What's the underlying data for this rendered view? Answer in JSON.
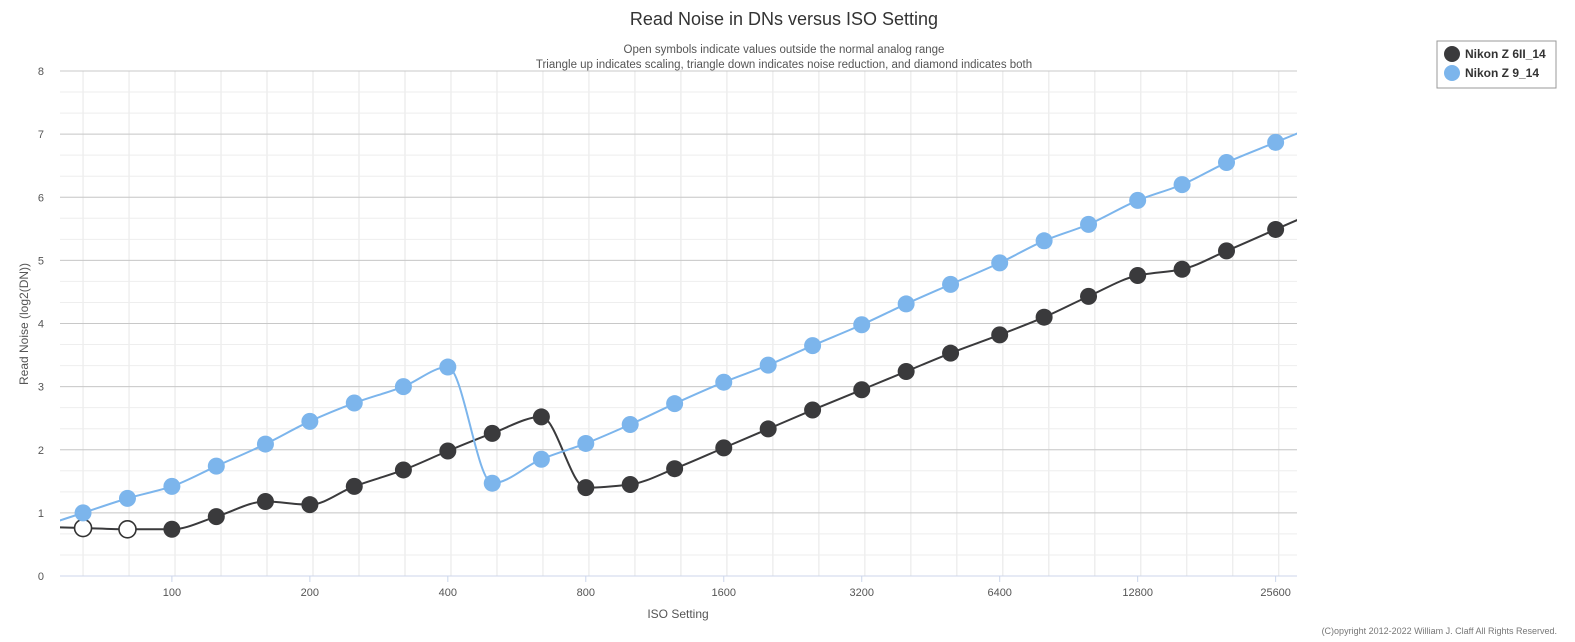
{
  "chart_data": {
    "type": "line",
    "title": "Read Noise in DNs versus ISO Setting",
    "subtitle_lines": [
      "Open symbols indicate values outside the normal analog range",
      "Triangle up indicates scaling, triangle down indicates noise reduction, and diamond indicates both"
    ],
    "xlabel": "ISO Setting",
    "ylabel": "Read Noise (log2(DN))",
    "x_scale": "log2",
    "x_ticks": [
      100,
      200,
      400,
      800,
      1600,
      3200,
      6400,
      12800,
      25600
    ],
    "x_tick_labels": [
      "100",
      "200",
      "400",
      "800",
      "1600",
      "3200",
      "6400",
      "12800",
      "25600"
    ],
    "xlim": [
      57,
      28500
    ],
    "ylim": [
      0,
      8
    ],
    "y_ticks": [
      0,
      1,
      2,
      3,
      4,
      5,
      6,
      7,
      8
    ],
    "y_tick_labels": [
      "0",
      "1",
      "2",
      "3",
      "4",
      "5",
      "6",
      "7",
      "8"
    ],
    "grid": true,
    "legend_position": "top-right",
    "series": [
      {
        "name": "Nikon Z 6II_14",
        "color": "#3a3a3c",
        "x": [
          64,
          80,
          100,
          125,
          160,
          200,
          250,
          320,
          400,
          500,
          640,
          800,
          1000,
          1250,
          1600,
          2000,
          2500,
          3200,
          4000,
          5000,
          6400,
          8000,
          10000,
          12800,
          16000,
          20000,
          25600
        ],
        "y": [
          0.76,
          0.74,
          0.74,
          0.94,
          1.18,
          1.13,
          1.42,
          1.68,
          1.98,
          2.26,
          2.52,
          1.4,
          1.45,
          1.7,
          2.03,
          2.33,
          2.63,
          2.95,
          3.24,
          3.53,
          3.82,
          4.1,
          4.43,
          4.76,
          4.86,
          5.15,
          5.49
        ],
        "open": [
          true,
          true,
          false,
          false,
          false,
          false,
          false,
          false,
          false,
          false,
          false,
          false,
          false,
          false,
          false,
          false,
          false,
          false,
          false,
          false,
          false,
          false,
          false,
          false,
          false,
          false,
          false
        ]
      },
      {
        "name": "Nikon Z 9_14",
        "color": "#7cb5ec",
        "x": [
          64,
          80,
          100,
          125,
          160,
          200,
          250,
          320,
          400,
          500,
          640,
          800,
          1000,
          1250,
          1600,
          2000,
          2500,
          3200,
          4000,
          5000,
          6400,
          8000,
          10000,
          12800,
          16000,
          20000,
          25600
        ],
        "y": [
          1.0,
          1.23,
          1.42,
          1.74,
          2.09,
          2.45,
          2.74,
          3.0,
          3.31,
          1.47,
          1.85,
          2.1,
          2.4,
          2.73,
          3.07,
          3.34,
          3.65,
          3.98,
          4.31,
          4.62,
          4.96,
          5.31,
          5.57,
          5.95,
          6.2,
          6.55,
          6.87
        ],
        "open": [
          false,
          false,
          false,
          false,
          false,
          false,
          false,
          false,
          false,
          false,
          false,
          false,
          false,
          false,
          false,
          false,
          false,
          false,
          false,
          false,
          false,
          false,
          false,
          false,
          false,
          false,
          false
        ]
      }
    ]
  },
  "credit": "(C)opyright 2012-2022 William J. Claff All Rights Reserved."
}
